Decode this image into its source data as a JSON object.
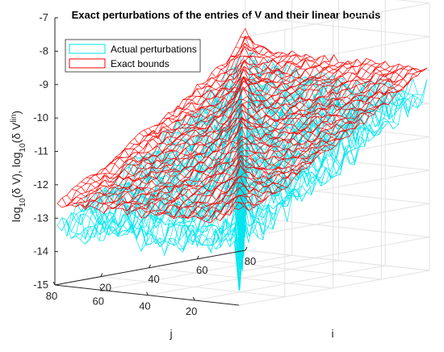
{
  "chart_data": {
    "type": "surface-mesh",
    "title": "Exact perturbations of the entries of V and their linear bounds",
    "axes": {
      "x": {
        "label": "j",
        "range": [
          1,
          80
        ],
        "ticks": [
          "20",
          "40",
          "60",
          "80"
        ]
      },
      "y": {
        "label": "i",
        "range": [
          1,
          80
        ],
        "ticks": [
          "20",
          "40",
          "60",
          "80"
        ]
      },
      "z": {
        "label": {
          "prefix": "log",
          "sub1": "10",
          "mid1": "(δ V), log",
          "sub2": "10",
          "mid2": "(δ V",
          "sup": "lin",
          "suffix": ")"
        },
        "range": [
          -15,
          -7
        ],
        "ticks": [
          "-7",
          "-8",
          "-9",
          "-10",
          "-11",
          "-12",
          "-13",
          "-14",
          "-15"
        ]
      }
    },
    "grid": true,
    "legend": {
      "position": "top-left"
    },
    "series": [
      {
        "name": "Actual perturbations",
        "color": "#00E5EE",
        "approx_surface": {
          "z_at_i1_j1": -13.4,
          "z_at_i80_j1": -9.6,
          "z_at_i1_j80": -13.4,
          "diagonal_peak_z": -8.2,
          "diagonal_dip_z": -14.5,
          "noise": 0.8
        }
      },
      {
        "name": "Exact bounds",
        "color": "#FF0000",
        "approx_surface": {
          "z_at_i1_j1": -12.6,
          "z_at_i80_j1": -8.9,
          "z_at_i1_j80": -12.6,
          "diagonal_peak_z": -7.8,
          "noise": 0.25
        }
      }
    ]
  }
}
